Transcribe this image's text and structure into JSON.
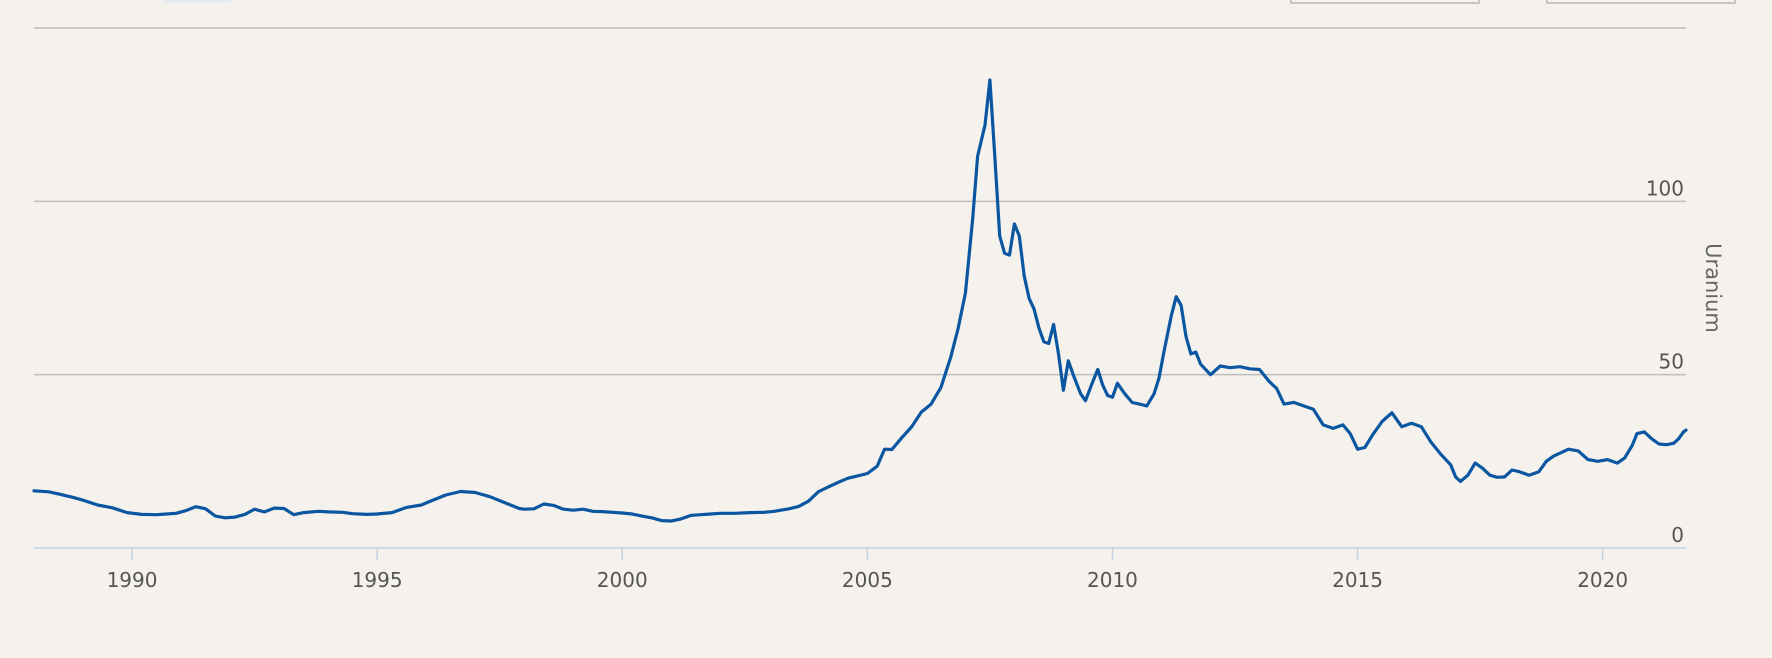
{
  "chart_data": {
    "type": "line",
    "ylabel": "Uranium",
    "ylim": [
      0,
      150
    ],
    "yticks": [
      "0",
      "50",
      "100"
    ],
    "xlim": [
      1988,
      2021.7
    ],
    "xticks": [
      "1990",
      "1995",
      "2000",
      "2005",
      "2010",
      "2015",
      "2020"
    ],
    "grid": "horizontal",
    "y_axis_side": "right",
    "series": [
      {
        "color": "#0a56a0",
        "points": [
          [
            1988.0,
            16.5
          ],
          [
            1988.3,
            16.2
          ],
          [
            1988.5,
            15.6
          ],
          [
            1988.8,
            14.6
          ],
          [
            1989.0,
            13.8
          ],
          [
            1989.3,
            12.4
          ],
          [
            1989.6,
            11.6
          ],
          [
            1989.9,
            10.2
          ],
          [
            1990.2,
            9.7
          ],
          [
            1990.5,
            9.6
          ],
          [
            1990.7,
            9.8
          ],
          [
            1990.9,
            10.0
          ],
          [
            1991.1,
            10.8
          ],
          [
            1991.3,
            11.9
          ],
          [
            1991.5,
            11.3
          ],
          [
            1991.7,
            9.2
          ],
          [
            1991.9,
            8.7
          ],
          [
            1992.1,
            8.9
          ],
          [
            1992.3,
            9.7
          ],
          [
            1992.5,
            11.2
          ],
          [
            1992.7,
            10.4
          ],
          [
            1992.9,
            11.5
          ],
          [
            1993.1,
            11.4
          ],
          [
            1993.3,
            9.6
          ],
          [
            1993.5,
            10.2
          ],
          [
            1993.8,
            10.6
          ],
          [
            1994.0,
            10.4
          ],
          [
            1994.3,
            10.3
          ],
          [
            1994.5,
            9.9
          ],
          [
            1994.8,
            9.7
          ],
          [
            1995.0,
            9.8
          ],
          [
            1995.3,
            10.2
          ],
          [
            1995.6,
            11.7
          ],
          [
            1995.9,
            12.4
          ],
          [
            1996.1,
            13.6
          ],
          [
            1996.4,
            15.3
          ],
          [
            1996.7,
            16.3
          ],
          [
            1997.0,
            16.0
          ],
          [
            1997.3,
            14.8
          ],
          [
            1997.6,
            13.1
          ],
          [
            1997.9,
            11.4
          ],
          [
            1998.0,
            11.2
          ],
          [
            1998.2,
            11.3
          ],
          [
            1998.4,
            12.7
          ],
          [
            1998.6,
            12.3
          ],
          [
            1998.8,
            11.2
          ],
          [
            1999.0,
            10.9
          ],
          [
            1999.2,
            11.2
          ],
          [
            1999.4,
            10.6
          ],
          [
            1999.6,
            10.5
          ],
          [
            1999.8,
            10.3
          ],
          [
            2000.0,
            10.1
          ],
          [
            2000.2,
            9.8
          ],
          [
            2000.4,
            9.2
          ],
          [
            2000.6,
            8.7
          ],
          [
            2000.8,
            7.9
          ],
          [
            2001.0,
            7.8
          ],
          [
            2001.2,
            8.4
          ],
          [
            2001.4,
            9.4
          ],
          [
            2001.6,
            9.6
          ],
          [
            2001.8,
            9.8
          ],
          [
            2002.0,
            10.0
          ],
          [
            2002.3,
            10.0
          ],
          [
            2002.6,
            10.2
          ],
          [
            2002.9,
            10.3
          ],
          [
            2003.1,
            10.6
          ],
          [
            2003.4,
            11.3
          ],
          [
            2003.6,
            12.0
          ],
          [
            2003.8,
            13.5
          ],
          [
            2004.0,
            16.2
          ],
          [
            2004.2,
            17.6
          ],
          [
            2004.4,
            18.9
          ],
          [
            2004.6,
            20.1
          ],
          [
            2004.8,
            20.8
          ],
          [
            2005.0,
            21.5
          ],
          [
            2005.2,
            23.6
          ],
          [
            2005.35,
            28.5
          ],
          [
            2005.5,
            28.4
          ],
          [
            2005.7,
            31.8
          ],
          [
            2005.9,
            34.9
          ],
          [
            2006.1,
            39.2
          ],
          [
            2006.3,
            41.5
          ],
          [
            2006.5,
            46.3
          ],
          [
            2006.7,
            55.0
          ],
          [
            2006.85,
            63.2
          ],
          [
            2007.0,
            73.5
          ],
          [
            2007.15,
            95.0
          ],
          [
            2007.25,
            113.0
          ],
          [
            2007.4,
            122.0
          ],
          [
            2007.5,
            135.0
          ],
          [
            2007.6,
            113.0
          ],
          [
            2007.7,
            90.0
          ],
          [
            2007.8,
            85.0
          ],
          [
            2007.9,
            84.5
          ],
          [
            2008.0,
            93.5
          ],
          [
            2008.1,
            90.0
          ],
          [
            2008.2,
            78.5
          ],
          [
            2008.3,
            72.0
          ],
          [
            2008.4,
            69.0
          ],
          [
            2008.5,
            63.5
          ],
          [
            2008.6,
            59.5
          ],
          [
            2008.7,
            59.0
          ],
          [
            2008.8,
            64.5
          ],
          [
            2008.9,
            56.0
          ],
          [
            2009.0,
            45.5
          ],
          [
            2009.1,
            54.0
          ],
          [
            2009.2,
            50.0
          ],
          [
            2009.35,
            44.5
          ],
          [
            2009.45,
            42.5
          ],
          [
            2009.6,
            48.0
          ],
          [
            2009.7,
            51.5
          ],
          [
            2009.8,
            47.0
          ],
          [
            2009.9,
            44.0
          ],
          [
            2010.0,
            43.5
          ],
          [
            2010.1,
            47.5
          ],
          [
            2010.25,
            44.5
          ],
          [
            2010.4,
            42.0
          ],
          [
            2010.55,
            41.5
          ],
          [
            2010.7,
            41.0
          ],
          [
            2010.85,
            44.5
          ],
          [
            2010.95,
            49.0
          ],
          [
            2011.05,
            56.5
          ],
          [
            2011.2,
            67.0
          ],
          [
            2011.3,
            72.5
          ],
          [
            2011.4,
            70.0
          ],
          [
            2011.5,
            61.0
          ],
          [
            2011.6,
            56.0
          ],
          [
            2011.7,
            56.5
          ],
          [
            2011.8,
            53.0
          ],
          [
            2011.9,
            51.5
          ],
          [
            2012.0,
            50.0
          ],
          [
            2012.2,
            52.5
          ],
          [
            2012.4,
            52.0
          ],
          [
            2012.6,
            52.3
          ],
          [
            2012.8,
            51.7
          ],
          [
            2013.0,
            51.5
          ],
          [
            2013.2,
            48.0
          ],
          [
            2013.35,
            46.0
          ],
          [
            2013.5,
            41.5
          ],
          [
            2013.7,
            42.0
          ],
          [
            2013.9,
            41.0
          ],
          [
            2014.1,
            40.0
          ],
          [
            2014.3,
            35.5
          ],
          [
            2014.5,
            34.5
          ],
          [
            2014.7,
            35.5
          ],
          [
            2014.85,
            33.0
          ],
          [
            2015.0,
            28.5
          ],
          [
            2015.15,
            29.0
          ],
          [
            2015.3,
            32.5
          ],
          [
            2015.5,
            36.5
          ],
          [
            2015.7,
            39.0
          ],
          [
            2015.9,
            35.0
          ],
          [
            2016.1,
            36.0
          ],
          [
            2016.3,
            35.0
          ],
          [
            2016.5,
            30.5
          ],
          [
            2016.7,
            27.0
          ],
          [
            2016.9,
            24.0
          ],
          [
            2017.0,
            20.5
          ],
          [
            2017.1,
            19.2
          ],
          [
            2017.25,
            21.0
          ],
          [
            2017.4,
            24.5
          ],
          [
            2017.55,
            23.0
          ],
          [
            2017.7,
            21.0
          ],
          [
            2017.85,
            20.4
          ],
          [
            2018.0,
            20.5
          ],
          [
            2018.15,
            22.5
          ],
          [
            2018.3,
            22.0
          ],
          [
            2018.5,
            21.0
          ],
          [
            2018.7,
            22.0
          ],
          [
            2018.85,
            25.0
          ],
          [
            2019.0,
            26.5
          ],
          [
            2019.15,
            27.5
          ],
          [
            2019.3,
            28.5
          ],
          [
            2019.5,
            28.0
          ],
          [
            2019.7,
            25.5
          ],
          [
            2019.9,
            25.0
          ],
          [
            2020.1,
            25.5
          ],
          [
            2020.3,
            24.5
          ],
          [
            2020.45,
            26.0
          ],
          [
            2020.6,
            29.5
          ],
          [
            2020.7,
            33.0
          ],
          [
            2020.85,
            33.5
          ],
          [
            2021.0,
            31.5
          ],
          [
            2021.15,
            30.0
          ],
          [
            2021.3,
            29.8
          ],
          [
            2021.45,
            30.2
          ],
          [
            2021.55,
            31.5
          ],
          [
            2021.65,
            33.5
          ],
          [
            2021.7,
            34.0
          ]
        ]
      }
    ]
  }
}
